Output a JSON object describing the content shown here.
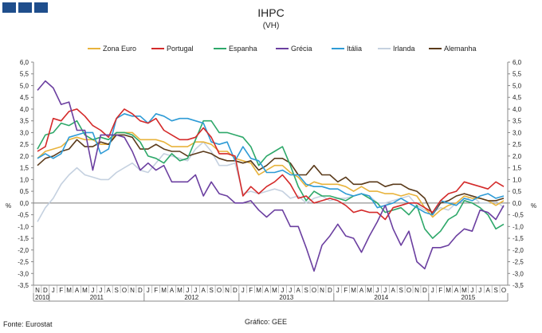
{
  "chart_data": {
    "type": "line",
    "title": "IHPC",
    "subtitle": "(VH)",
    "y_unit_left": "%",
    "y_unit_right": "%",
    "ylim": [
      -3.5,
      6.0
    ],
    "y_tick_labels": [
      "6,0",
      "5,5",
      "5,0",
      "4,5",
      "4,0",
      "3,5",
      "3,0",
      "2,5",
      "2,0",
      "1,5",
      "1,0",
      "0,5",
      "0,0",
      "-0,5",
      "-1,0",
      "-1,5",
      "-2,0",
      "-2,5",
      "-3,0",
      "-3,5"
    ],
    "x_tick_labels": [
      "N",
      "D",
      "J",
      "F",
      "M",
      "A",
      "M",
      "J",
      "J",
      "A",
      "S",
      "O",
      "N",
      "D",
      "J",
      "F",
      "M",
      "A",
      "M",
      "J",
      "J",
      "A",
      "S",
      "O",
      "N",
      "D",
      "J",
      "F",
      "M",
      "A",
      "M",
      "J",
      "J",
      "A",
      "S",
      "O",
      "N",
      "D",
      "J",
      "F",
      "M",
      "A",
      "M",
      "J",
      "J",
      "A",
      "S",
      "O",
      "N",
      "D",
      "J",
      "F",
      "M",
      "A",
      "M",
      "J",
      "J",
      "A",
      "S",
      "O"
    ],
    "years": [
      {
        "label": "2010",
        "start": 0,
        "end": 1
      },
      {
        "label": "2011",
        "start": 2,
        "end": 13
      },
      {
        "label": "2012",
        "start": 14,
        "end": 25
      },
      {
        "label": "2013",
        "start": 26,
        "end": 37
      },
      {
        "label": "2014",
        "start": 38,
        "end": 49
      },
      {
        "label": "2015",
        "start": 50,
        "end": 59
      }
    ],
    "legend_position": "top",
    "grid": false,
    "series": [
      {
        "name": "Zona Euro",
        "color": "#e8b33c",
        "values": [
          1.9,
          2.2,
          2.3,
          2.4,
          2.7,
          2.8,
          2.7,
          2.7,
          2.5,
          2.5,
          3.0,
          3.0,
          3.0,
          2.7,
          2.7,
          2.7,
          2.6,
          2.4,
          2.4,
          2.4,
          2.6,
          2.6,
          2.5,
          2.2,
          2.2,
          1.9,
          1.8,
          1.7,
          1.2,
          1.4,
          1.6,
          1.6,
          1.3,
          1.1,
          0.7,
          0.9,
          0.8,
          0.8,
          0.8,
          0.7,
          0.5,
          0.7,
          0.5,
          0.5,
          0.4,
          0.4,
          0.3,
          0.4,
          0.3,
          -0.2,
          -0.6,
          -0.3,
          -0.1,
          0.0,
          0.3,
          0.2,
          0.2,
          0.1,
          -0.1,
          0.1
        ]
      },
      {
        "name": "Portugal",
        "color": "#d42a2a",
        "values": [
          2.2,
          2.4,
          3.6,
          3.5,
          3.9,
          4.0,
          3.7,
          3.3,
          3.1,
          2.8,
          3.6,
          4.0,
          3.8,
          3.5,
          3.4,
          3.6,
          3.1,
          2.9,
          2.7,
          2.7,
          2.8,
          3.2,
          2.8,
          2.1,
          2.1,
          2.0,
          0.3,
          0.7,
          0.4,
          0.7,
          0.9,
          1.2,
          0.8,
          0.2,
          0.3,
          0.0,
          0.1,
          0.2,
          0.1,
          -0.1,
          -0.4,
          -0.3,
          -0.4,
          -0.4,
          -0.7,
          -0.2,
          -0.1,
          0.0,
          0.0,
          -0.2,
          -0.4,
          0.1,
          0.4,
          0.5,
          0.9,
          0.8,
          0.7,
          0.6,
          0.9,
          0.7
        ]
      },
      {
        "name": "Espanha",
        "color": "#2ea86a",
        "values": [
          2.3,
          2.9,
          3.0,
          3.4,
          3.3,
          3.5,
          2.9,
          2.7,
          2.8,
          2.7,
          3.0,
          3.0,
          2.9,
          2.6,
          2.0,
          1.9,
          1.7,
          2.1,
          1.8,
          1.9,
          2.7,
          3.5,
          3.5,
          3.0,
          3.0,
          2.9,
          2.8,
          2.4,
          1.6,
          2.0,
          2.2,
          2.4,
          1.6,
          0.7,
          0.1,
          0.5,
          0.3,
          0.3,
          0.2,
          0.1,
          0.3,
          0.4,
          0.2,
          0.0,
          -0.4,
          -0.3,
          -0.2,
          -0.5,
          -0.1,
          -1.1,
          -1.5,
          -1.2,
          -0.7,
          -0.5,
          0.1,
          0.0,
          -0.2,
          -0.5,
          -1.1,
          -0.9
        ]
      },
      {
        "name": "Grécia",
        "color": "#6b3fa0",
        "values": [
          4.8,
          5.2,
          4.9,
          4.2,
          4.3,
          3.1,
          3.1,
          1.4,
          2.9,
          2.9,
          2.9,
          2.8,
          2.2,
          1.4,
          1.7,
          1.4,
          1.6,
          0.9,
          0.9,
          0.9,
          1.2,
          0.3,
          0.9,
          0.4,
          0.3,
          0.0,
          0.0,
          0.1,
          -0.3,
          -0.6,
          -0.3,
          -0.3,
          -1.0,
          -1.0,
          -1.9,
          -2.9,
          -1.8,
          -1.4,
          -0.9,
          -1.4,
          -1.5,
          -2.1,
          -1.4,
          -0.8,
          -0.1,
          -1.1,
          -1.8,
          -1.2,
          -2.5,
          -2.8,
          -1.9,
          -1.9,
          -1.8,
          -1.4,
          -1.1,
          -1.2,
          -0.3,
          -0.4,
          -0.7,
          -0.1
        ]
      },
      {
        "name": "Itália",
        "color": "#2e9bd6",
        "values": [
          1.9,
          2.1,
          1.9,
          2.1,
          2.8,
          2.9,
          3.0,
          3.0,
          2.1,
          2.3,
          3.6,
          3.8,
          3.7,
          3.7,
          3.4,
          3.8,
          3.7,
          3.5,
          3.6,
          3.6,
          3.5,
          3.4,
          2.6,
          2.5,
          2.6,
          1.8,
          2.4,
          1.9,
          1.8,
          1.3,
          1.3,
          1.4,
          1.2,
          1.2,
          0.8,
          0.7,
          0.7,
          0.6,
          0.6,
          0.4,
          0.3,
          0.4,
          0.3,
          -0.2,
          -0.1,
          0.0,
          0.2,
          0.0,
          -0.2,
          -0.4,
          -0.5,
          0.1,
          0.0,
          -0.1,
          0.2,
          0.1,
          0.3,
          0.4,
          0.2,
          0.3
        ]
      },
      {
        "name": "Irlanda",
        "color": "#c5d1e0",
        "values": [
          -0.8,
          -0.2,
          0.2,
          0.8,
          1.2,
          1.5,
          1.2,
          1.1,
          1.0,
          1.0,
          1.3,
          1.5,
          1.7,
          1.4,
          1.3,
          1.7,
          2.1,
          2.0,
          1.9,
          1.8,
          2.3,
          2.6,
          2.2,
          1.6,
          1.6,
          1.7,
          0.4,
          0.5,
          0.4,
          0.5,
          0.6,
          0.5,
          0.2,
          0.3,
          0.0,
          0.2,
          0.3,
          0.1,
          0.2,
          0.2,
          0.3,
          0.4,
          0.3,
          0.0,
          0.0,
          0.1,
          0.2,
          0.3,
          -0.1,
          -0.3,
          -0.4,
          -0.2,
          -0.3,
          0.0,
          0.1,
          0.3,
          0.0,
          0.0,
          0.1,
          -0.2
        ]
      },
      {
        "name": "Alemanha",
        "color": "#5a3a1a",
        "values": [
          1.6,
          1.9,
          2.0,
          2.2,
          2.3,
          2.7,
          2.4,
          2.4,
          2.6,
          2.5,
          2.9,
          2.9,
          2.8,
          2.3,
          2.3,
          2.5,
          2.3,
          2.2,
          2.2,
          2.0,
          2.1,
          2.2,
          2.1,
          1.9,
          1.8,
          1.8,
          1.7,
          1.8,
          1.4,
          1.6,
          1.9,
          1.9,
          1.7,
          1.2,
          1.2,
          1.6,
          1.2,
          1.2,
          0.9,
          1.1,
          0.8,
          0.8,
          0.9,
          0.9,
          0.7,
          0.8,
          0.8,
          0.6,
          0.5,
          0.2,
          -0.5,
          0.0,
          0.1,
          0.3,
          0.4,
          0.3,
          0.2,
          0.1,
          0.1,
          0.2
        ]
      }
    ],
    "footer": {
      "source": "Fonte: Eurostat",
      "credit": "Gráfico: GEE"
    }
  },
  "brand": {
    "logo_color": "#1f4e8c"
  }
}
